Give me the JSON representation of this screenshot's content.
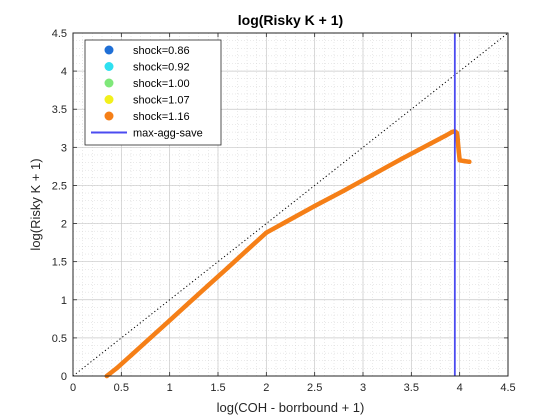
{
  "chart_data": {
    "type": "scatter",
    "title": "log(Risky K + 1)",
    "xlabel": "log(COH - borrbound + 1)",
    "ylabel": "log(Risky K + 1)",
    "xlim": [
      0,
      4.5
    ],
    "ylim": [
      0,
      4.5
    ],
    "xticks": [
      0,
      0.5,
      1,
      1.5,
      2,
      2.5,
      3,
      3.5,
      4,
      4.5
    ],
    "yticks": [
      0,
      0.5,
      1,
      1.5,
      2,
      2.5,
      3,
      3.5,
      4,
      4.5
    ],
    "xtick_labels": [
      "0",
      "0.5",
      "1",
      "1.5",
      "2",
      "2.5",
      "3",
      "3.5",
      "4",
      "4.5"
    ],
    "ytick_labels": [
      "0",
      "0.5",
      "1",
      "1.5",
      "2",
      "2.5",
      "3",
      "3.5",
      "4",
      "4.5"
    ],
    "grid": true,
    "minor_grid": true,
    "legend_position": "top-left",
    "series": [
      {
        "name": "shock=0.86",
        "color": "#1f6fd6",
        "x": [],
        "y": []
      },
      {
        "name": "shock=0.92",
        "color": "#2ee0f0",
        "x": [],
        "y": []
      },
      {
        "name": "shock=1.00",
        "color": "#7fe87a",
        "x": [],
        "y": []
      },
      {
        "name": "shock=1.07",
        "color": "#f2f01c",
        "x": [],
        "y": []
      },
      {
        "name": "shock=1.16",
        "color": "#f57f17",
        "x": [
          0.35,
          0.45,
          0.6,
          0.8,
          1.0,
          1.2,
          1.4,
          1.6,
          1.8,
          2.0,
          2.2,
          2.5,
          2.8,
          3.1,
          3.4,
          3.7,
          3.85,
          3.92,
          3.95,
          3.97,
          3.98,
          3.99,
          4.0,
          4.05,
          4.1
        ],
        "y": [
          0.0,
          0.1,
          0.27,
          0.5,
          0.73,
          0.96,
          1.19,
          1.42,
          1.65,
          1.88,
          2.02,
          2.23,
          2.43,
          2.64,
          2.85,
          3.05,
          3.15,
          3.2,
          3.21,
          3.19,
          3.1,
          2.95,
          2.83,
          2.82,
          2.81
        ]
      }
    ],
    "vertical_line": {
      "name": "max-agg-save",
      "x": 3.95,
      "color": "#4b4bf0"
    },
    "diagonal": {
      "x": [
        0,
        4.5
      ],
      "y": [
        0,
        4.5
      ],
      "style": "dotted",
      "color": "#000000"
    }
  }
}
